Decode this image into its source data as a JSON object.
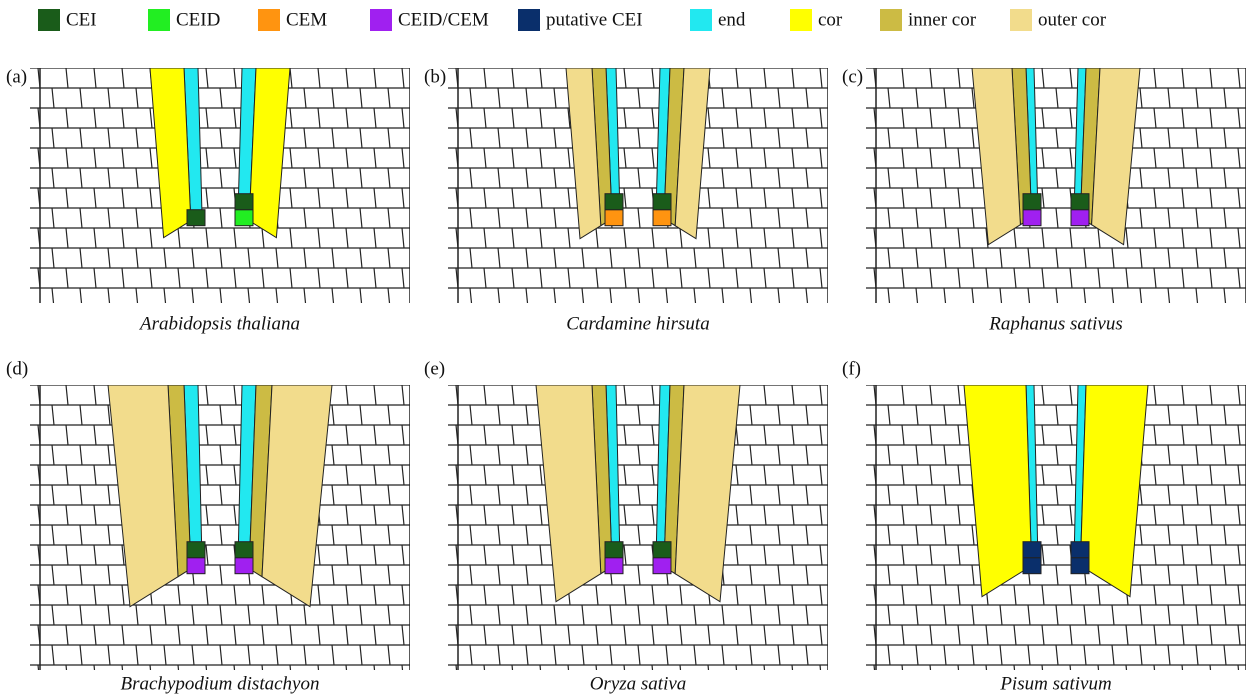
{
  "legend": [
    {
      "label": "CEI",
      "color": "#1a5c1a"
    },
    {
      "label": "CEID",
      "color": "#22ee22"
    },
    {
      "label": "CEM",
      "color": "#ff9410"
    },
    {
      "label": "CEID/CEM",
      "color": "#a020f0"
    },
    {
      "label": "putative CEI",
      "color": "#0a2f6b"
    },
    {
      "label": "end",
      "color": "#22e8f0"
    },
    {
      "label": "cor",
      "color": "#ffff00"
    },
    {
      "label": "inner cor",
      "color": "#ccbb44"
    },
    {
      "label": "outer cor",
      "color": "#f2dc8c"
    }
  ],
  "panels": [
    {
      "letter": "(a)",
      "species": "Arabidopsis thaliana"
    },
    {
      "letter": "(b)",
      "species": "Cardamine hirsuta"
    },
    {
      "letter": "(c)",
      "species": "Raphanus sativus"
    },
    {
      "letter": "(d)",
      "species": "Brachypodium distachyon"
    },
    {
      "letter": "(e)",
      "species": "Oryza sativa"
    },
    {
      "letter": "(f)",
      "species": "Pisum sativum"
    }
  ]
}
